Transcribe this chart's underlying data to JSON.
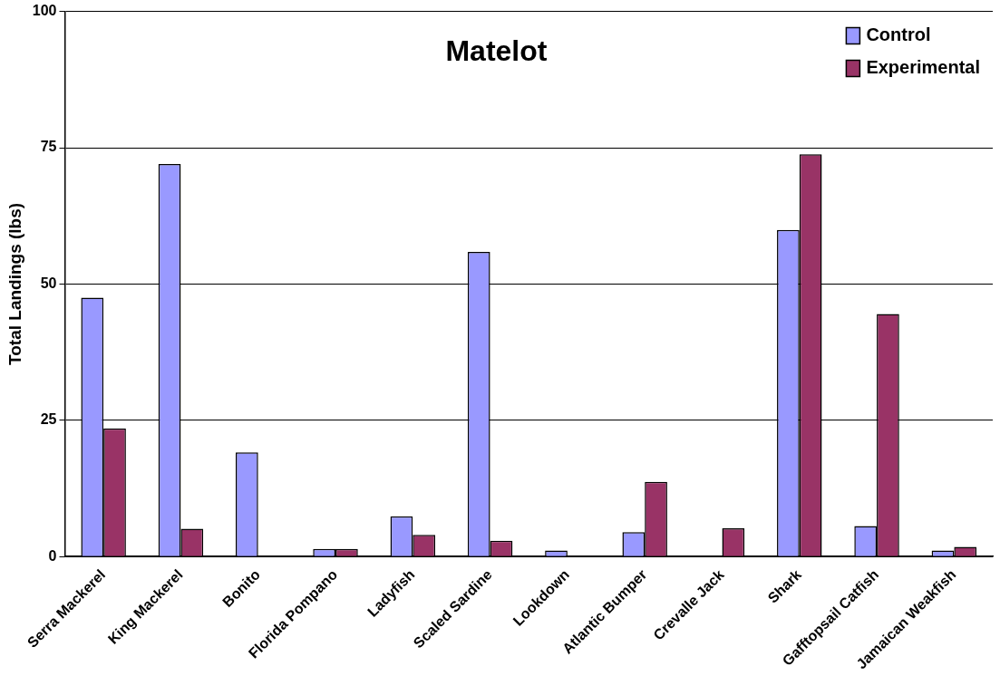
{
  "chart_data": {
    "type": "bar",
    "title": "Matelot",
    "ylabel": "Total Landings (lbs)",
    "categories": [
      "Serra Mackerel",
      "King Mackerel",
      "Bonito",
      "Florida Pompano",
      "Ladyfish",
      "Scaled Sardine",
      "Lookdown",
      "Atlantic Bumper",
      "Crevalle Jack",
      "Shark",
      "Gafftopsail Catfish",
      "Jamaican Weakfish"
    ],
    "series": [
      {
        "name": "Control",
        "color": "#9999ff",
        "values": [
          47.5,
          72.0,
          19.1,
          1.4,
          7.4,
          55.9,
          1.1,
          4.5,
          0,
          59.9,
          5.6,
          1.1
        ]
      },
      {
        "name": "Experimental",
        "color": "#993366",
        "values": [
          23.5,
          5.1,
          0,
          1.4,
          4.0,
          2.9,
          0,
          13.7,
          5.2,
          73.8,
          44.5,
          1.8
        ]
      }
    ],
    "ylim": [
      0,
      100
    ],
    "yticks": [
      0,
      25,
      50,
      75,
      100
    ],
    "grid": "y",
    "legend": "top right"
  }
}
